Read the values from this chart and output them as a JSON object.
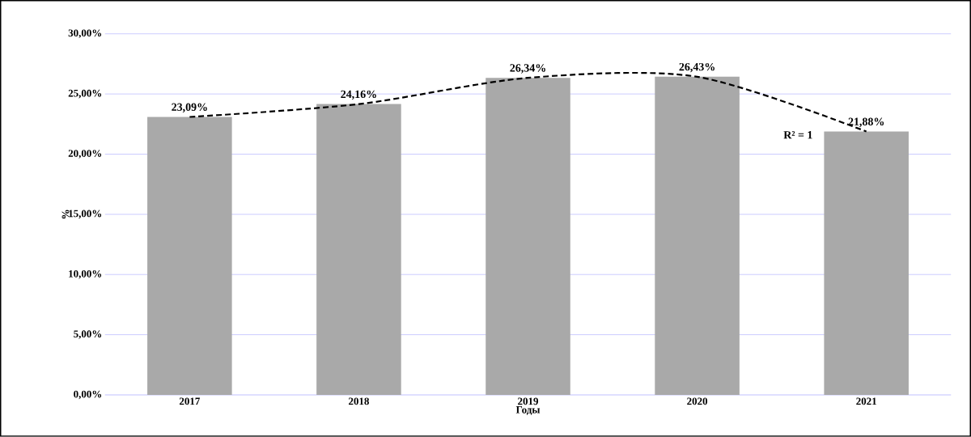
{
  "chart_data": {
    "type": "bar",
    "xlabel": "Годы",
    "ylabel": "%",
    "categories": [
      "2017",
      "2018",
      "2019",
      "2020",
      "2021"
    ],
    "series": [
      {
        "color": "#a9a9a9",
        "values": [
          23.09,
          24.16,
          26.34,
          26.43,
          21.88
        ],
        "value_labels": [
          "23,09%",
          "24,16%",
          "26,34%",
          "26,43%",
          "21,88%"
        ]
      },
      {
        "type": "line",
        "color": "#000000",
        "line_style": "dashed",
        "marker": "none",
        "values": [
          23.09,
          24.16,
          26.34,
          26.43,
          21.88
        ]
      }
    ],
    "ylim": [
      0,
      30
    ],
    "yticks": [
      {
        "value": 0,
        "label": "0,00%"
      },
      {
        "value": 5,
        "label": "5,00%"
      },
      {
        "value": 10,
        "label": "10,00%"
      },
      {
        "value": 15,
        "label": "15,00%"
      },
      {
        "value": 20,
        "label": "20,00%"
      },
      {
        "value": 25,
        "label": "25,00%"
      },
      {
        "value": 30,
        "label": "30,00%"
      }
    ],
    "grid": "y",
    "annotations": [
      "R² = 1"
    ]
  }
}
